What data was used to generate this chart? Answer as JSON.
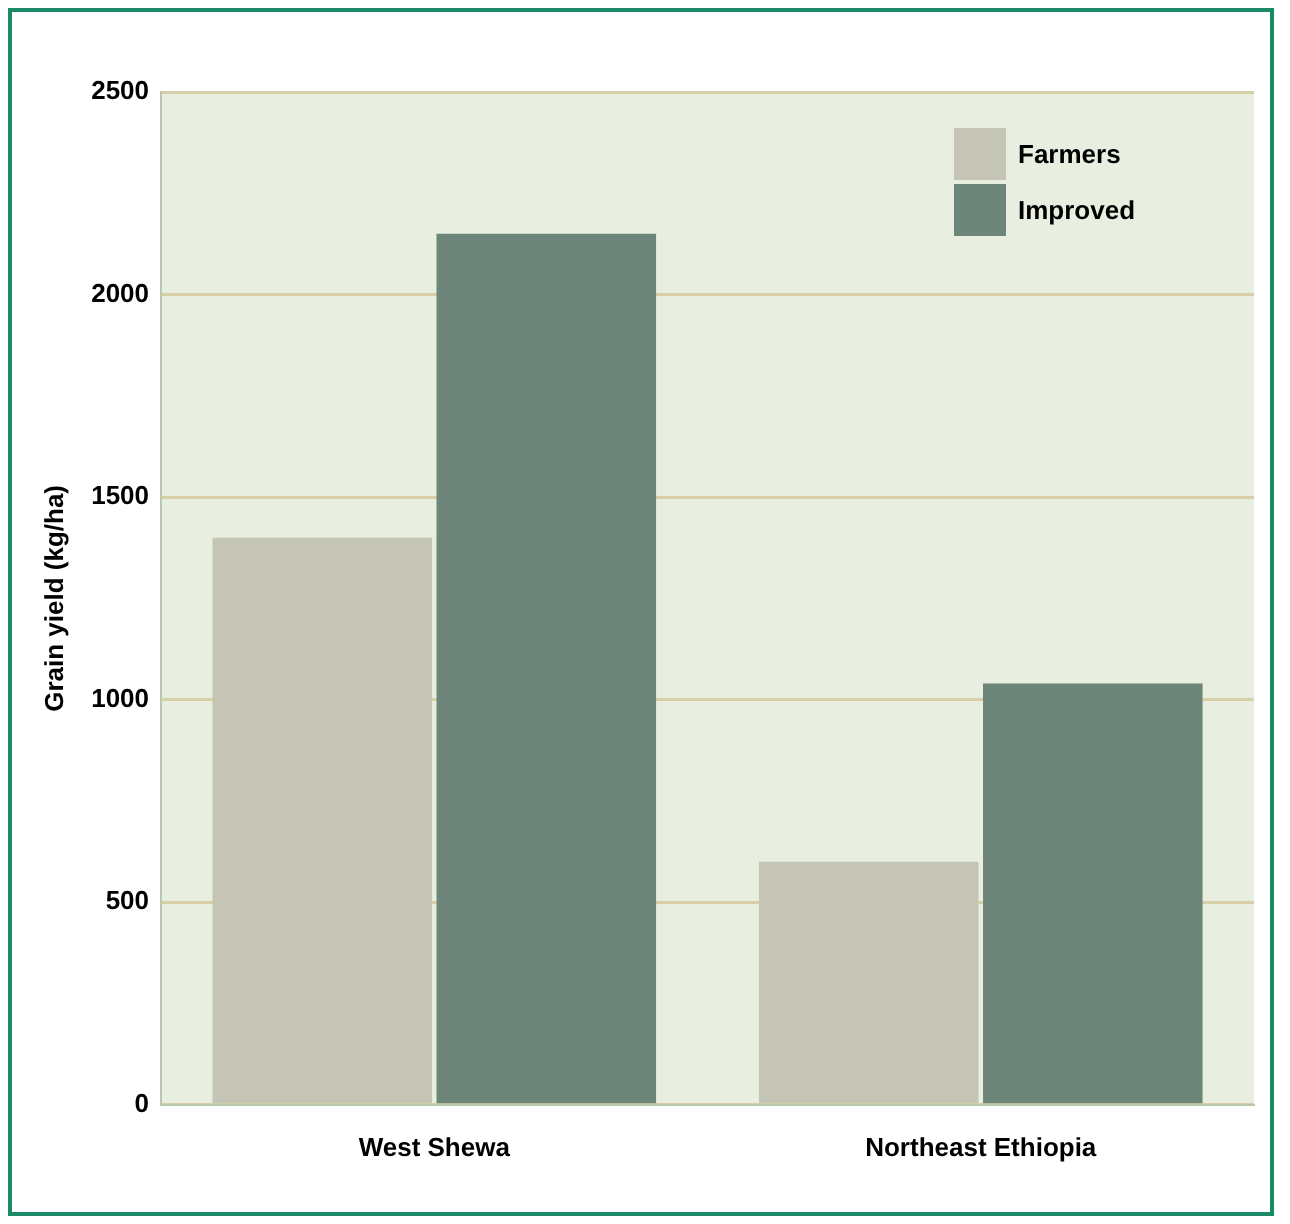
{
  "chart_data": {
    "type": "bar",
    "ylabel": "Grain yield (kg/ha)",
    "categories": [
      "West Shewa",
      "Northeast Ethiopia"
    ],
    "series": [
      {
        "name": "Farmers",
        "color": "#c4c5b5",
        "values": [
          1400,
          600
        ]
      },
      {
        "name": "Improved",
        "color": "#6e8679",
        "values": [
          2150,
          1040
        ]
      }
    ],
    "ylim": [
      0,
      2500
    ],
    "yticks": [
      0,
      500,
      1000,
      1500,
      2000,
      2500
    ],
    "grid": "y",
    "legend": "top right"
  }
}
